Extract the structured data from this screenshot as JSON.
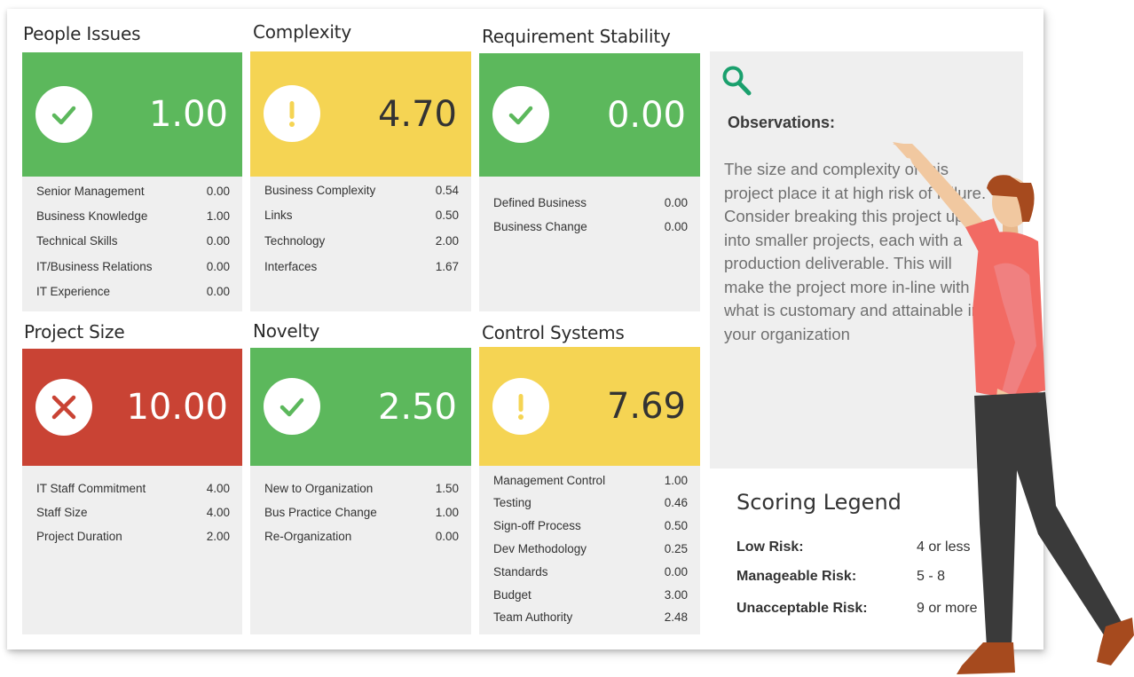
{
  "cards": [
    {
      "title": "People Issues",
      "score": "1.00",
      "status": "green",
      "icon": "check-icon",
      "items": [
        {
          "label": "Senior Management",
          "value": "0.00"
        },
        {
          "label": "Business Knowledge",
          "value": "1.00"
        },
        {
          "label": "Technical Skills",
          "value": "0.00"
        },
        {
          "label": "IT/Business Relations",
          "value": "0.00"
        },
        {
          "label": "IT Experience",
          "value": "0.00"
        }
      ]
    },
    {
      "title": "Complexity",
      "score": "4.70",
      "status": "yellow",
      "icon": "exclamation-icon",
      "items": [
        {
          "label": "Business Complexity",
          "value": "0.54"
        },
        {
          "label": "Links",
          "value": "0.50"
        },
        {
          "label": "Technology",
          "value": "2.00"
        },
        {
          "label": "Interfaces",
          "value": "1.67"
        }
      ]
    },
    {
      "title": "Requirement Stability",
      "score": "0.00",
      "status": "green",
      "icon": "check-icon",
      "items": [
        {
          "label": "Defined Business",
          "value": "0.00"
        },
        {
          "label": "Business Change",
          "value": "0.00"
        }
      ]
    },
    {
      "title": "Project Size",
      "score": "10.00",
      "status": "red",
      "icon": "x-icon",
      "items": [
        {
          "label": "IT Staff Commitment",
          "value": "4.00"
        },
        {
          "label": "Staff Size",
          "value": "4.00"
        },
        {
          "label": "Project Duration",
          "value": "2.00"
        }
      ]
    },
    {
      "title": "Novelty",
      "score": "2.50",
      "status": "green",
      "icon": "check-icon",
      "items": [
        {
          "label": "New to Organization",
          "value": "1.50"
        },
        {
          "label": "Bus Practice Change",
          "value": "1.00"
        },
        {
          "label": "Re-Organization",
          "value": "0.00"
        }
      ]
    },
    {
      "title": "Control Systems",
      "score": "7.69",
      "status": "yellow",
      "icon": "exclamation-icon",
      "items": [
        {
          "label": "Management Control",
          "value": "1.00"
        },
        {
          "label": "Testing",
          "value": "0.46"
        },
        {
          "label": "Sign-off Process",
          "value": "0.50"
        },
        {
          "label": "Dev Methodology",
          "value": "0.25"
        },
        {
          "label": "Standards",
          "value": "0.00"
        },
        {
          "label": "Budget",
          "value": "3.00"
        },
        {
          "label": "Team Authority",
          "value": "2.48"
        }
      ]
    }
  ],
  "observations": {
    "icon": "magnifier-icon",
    "title": "Observations:",
    "lines": [
      "The size and complexity of this",
      "project place it at high risk of failure.",
      "Consider breaking this project up",
      "into smaller projects, each with a",
      "production deliverable.  This will",
      "make the project more in-line with",
      "what is customary and attainable in",
      "your organization"
    ]
  },
  "legend": {
    "title": "Scoring Legend",
    "rows": [
      {
        "label": "Low Risk:",
        "value": "4 or less"
      },
      {
        "label": "Manageable Risk:",
        "value": "5 - 8"
      },
      {
        "label": "Unacceptable Risk:",
        "value": "9 or more"
      }
    ]
  },
  "colors": {
    "green": "#5cb85c",
    "yellow": "#f5d453",
    "red": "#c94334",
    "panel": "#efefef",
    "accent": "#1aa06d"
  }
}
